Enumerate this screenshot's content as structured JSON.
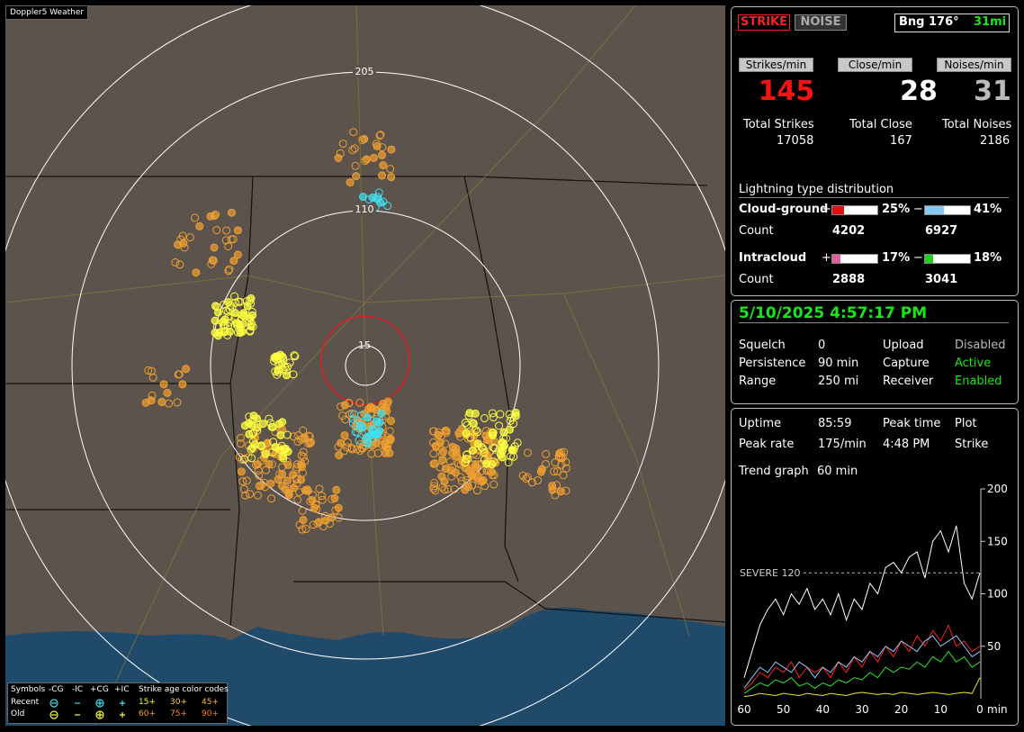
{
  "app_title": "Doppler5 Weather",
  "map": {
    "rings": [
      {
        "label": "205"
      },
      {
        "label": "110"
      },
      {
        "label": "15"
      }
    ]
  },
  "legend": {
    "headers": [
      "Symbols",
      "-CG",
      "-IC",
      "+CG",
      "+IC"
    ],
    "age_title": "Strike age color codes",
    "rows": [
      {
        "label": "Recent",
        "ages": [
          "15+",
          "30+",
          "45+"
        ]
      },
      {
        "label": "Old",
        "ages": [
          "60+",
          "75+",
          "90+"
        ]
      }
    ]
  },
  "status": {
    "buttons": [
      "STRIKE",
      "NOISE"
    ],
    "bearing": "Bng 176°",
    "distance": "31mi"
  },
  "rates": [
    {
      "button": "Strikes/min",
      "value": 145,
      "total_label": "Total Strikes",
      "total": 17058
    },
    {
      "button": "Close/min",
      "value": 28,
      "total_label": "Total Close",
      "total": 167
    },
    {
      "button": "Noises/min",
      "value": 31,
      "total_label": "Total Noises",
      "total": 2186
    }
  ],
  "distribution": {
    "title": "Lightning type distribution",
    "count_label": "Count",
    "rows": [
      {
        "label": "Cloud-ground",
        "pos_sign": "+",
        "pos": {
          "value": 25,
          "label": "25%"
        },
        "neg_sign": "−",
        "neg": {
          "value": 41,
          "label": "41%"
        },
        "pos_count": 4202,
        "neg_count": 6927
      },
      {
        "label": "Intracloud",
        "pos_sign": "+",
        "pos": {
          "value": 17,
          "label": "17%"
        },
        "neg_sign": "−",
        "neg": {
          "value": 18,
          "label": "18%"
        },
        "pos_count": 2888,
        "neg_count": 3041
      }
    ]
  },
  "clock": "5/10/2025 4:57:17 PM",
  "settings": {
    "rows": [
      [
        "Squelch",
        "0",
        "Upload",
        "Disabled"
      ],
      [
        "Persistence",
        "90 min",
        "Capture",
        "Active"
      ],
      [
        "Range",
        "250 mi",
        "Receiver",
        "Enabled"
      ]
    ]
  },
  "stats": {
    "rows": [
      [
        "Uptime",
        "85:59",
        "Peak time",
        "Plot"
      ],
      [
        "Peak rate",
        "175/min",
        "4:48 PM",
        "Strike"
      ]
    ],
    "trend_label": "Trend graph",
    "trend_span": "60 min"
  },
  "trend": {
    "ylim": [
      0,
      200
    ],
    "yticks": [
      50,
      100,
      150,
      200
    ],
    "xlim": [
      60,
      0
    ],
    "xticks": [
      60,
      50,
      40,
      30,
      20,
      10,
      0
    ],
    "x_unit": "min",
    "severe": {
      "value": 120,
      "label": "SEVERE 120"
    },
    "x": [
      60,
      58,
      56,
      54,
      52,
      50,
      48,
      46,
      44,
      42,
      40,
      38,
      36,
      34,
      32,
      30,
      28,
      26,
      24,
      22,
      20,
      18,
      16,
      14,
      12,
      10,
      8,
      6,
      4,
      2,
      0
    ],
    "series": [
      {
        "color": "#ffffff",
        "values": [
          20,
          45,
          70,
          85,
          95,
          80,
          100,
          90,
          105,
          85,
          95,
          80,
          100,
          75,
          95,
          85,
          110,
          100,
          125,
          130,
          120,
          135,
          140,
          115,
          150,
          160,
          140,
          165,
          110,
          95,
          120
        ]
      },
      {
        "color": "#ff2020",
        "values": [
          8,
          15,
          25,
          20,
          30,
          25,
          35,
          20,
          30,
          25,
          30,
          20,
          35,
          25,
          40,
          30,
          45,
          35,
          50,
          40,
          55,
          45,
          60,
          50,
          65,
          55,
          70,
          50,
          55,
          45,
          50
        ]
      },
      {
        "color": "#90c8ff",
        "values": [
          10,
          20,
          30,
          25,
          35,
          30,
          25,
          35,
          30,
          20,
          30,
          25,
          35,
          30,
          40,
          35,
          45,
          40,
          50,
          45,
          55,
          50,
          45,
          55,
          60,
          50,
          55,
          60,
          50,
          40,
          45
        ]
      },
      {
        "color": "#30e030",
        "values": [
          5,
          10,
          15,
          12,
          18,
          15,
          20,
          12,
          15,
          10,
          15,
          12,
          18,
          15,
          20,
          18,
          25,
          20,
          30,
          25,
          30,
          28,
          35,
          30,
          40,
          35,
          45,
          35,
          40,
          30,
          35
        ]
      },
      {
        "color": "#e8e820",
        "values": [
          2,
          3,
          5,
          4,
          3,
          5,
          4,
          3,
          5,
          4,
          3,
          5,
          4,
          3,
          5,
          6,
          5,
          4,
          5,
          4,
          6,
          5,
          4,
          5,
          6,
          5,
          4,
          5,
          6,
          5,
          20
        ]
      }
    ]
  }
}
